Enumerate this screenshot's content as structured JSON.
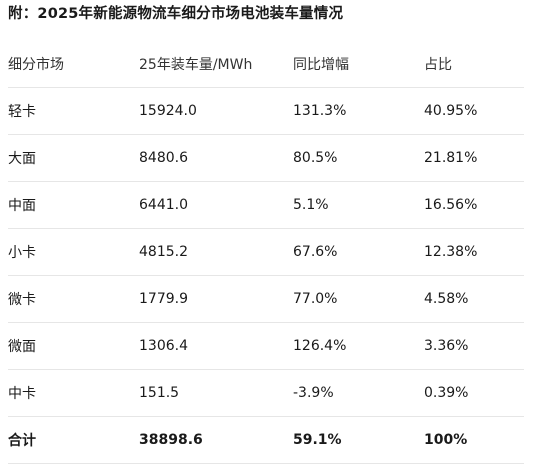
{
  "title": "附：2025年新能源物流车细分市场电池装车量情况",
  "table": {
    "headers": [
      "细分市场",
      "25年装车量/MWh",
      "同比增幅",
      "占比"
    ],
    "rows": [
      [
        "轻卡",
        "15924.0",
        "131.3%",
        "40.95%"
      ],
      [
        "大面",
        "8480.6",
        "80.5%",
        "21.81%"
      ],
      [
        "中面",
        "6441.0",
        "5.1%",
        "16.56%"
      ],
      [
        "小卡",
        "4815.2",
        "67.6%",
        "12.38%"
      ],
      [
        "微卡",
        "1779.9",
        "77.0%",
        "4.58%"
      ],
      [
        "微面",
        "1306.4",
        "126.4%",
        "3.36%"
      ],
      [
        "中卡",
        "151.5",
        "-3.9%",
        "0.39%"
      ]
    ],
    "total": [
      "合计",
      "38898.6",
      "59.1%",
      "100%"
    ]
  }
}
